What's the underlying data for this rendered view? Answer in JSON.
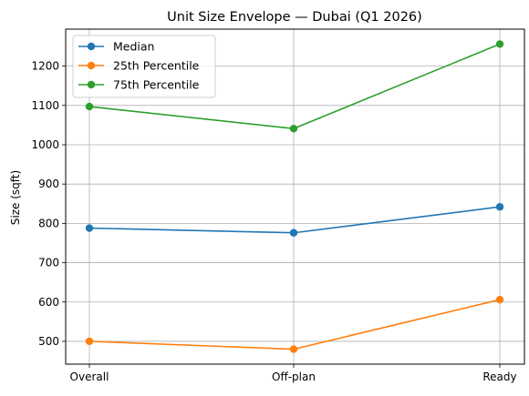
{
  "chart_data": {
    "type": "line",
    "title": "Unit Size Envelope — Dubai (Q1 2026)",
    "xlabel": "",
    "ylabel": "Size (sqft)",
    "categories": [
      "Overall",
      "Off-plan",
      "Ready"
    ],
    "ylim": [
      442,
      1294
    ],
    "yticks": [
      500,
      600,
      700,
      800,
      900,
      1000,
      1100,
      1200
    ],
    "grid": true,
    "legend_position": "top-left",
    "series": [
      {
        "name": "Median",
        "color": "#1f77b4",
        "values": [
          788,
          776,
          842
        ]
      },
      {
        "name": "25th Percentile",
        "color": "#ff7f0e",
        "values": [
          500,
          480,
          606
        ]
      },
      {
        "name": "75th Percentile",
        "color": "#2ca02c",
        "values": [
          1097,
          1041,
          1256
        ]
      }
    ]
  }
}
